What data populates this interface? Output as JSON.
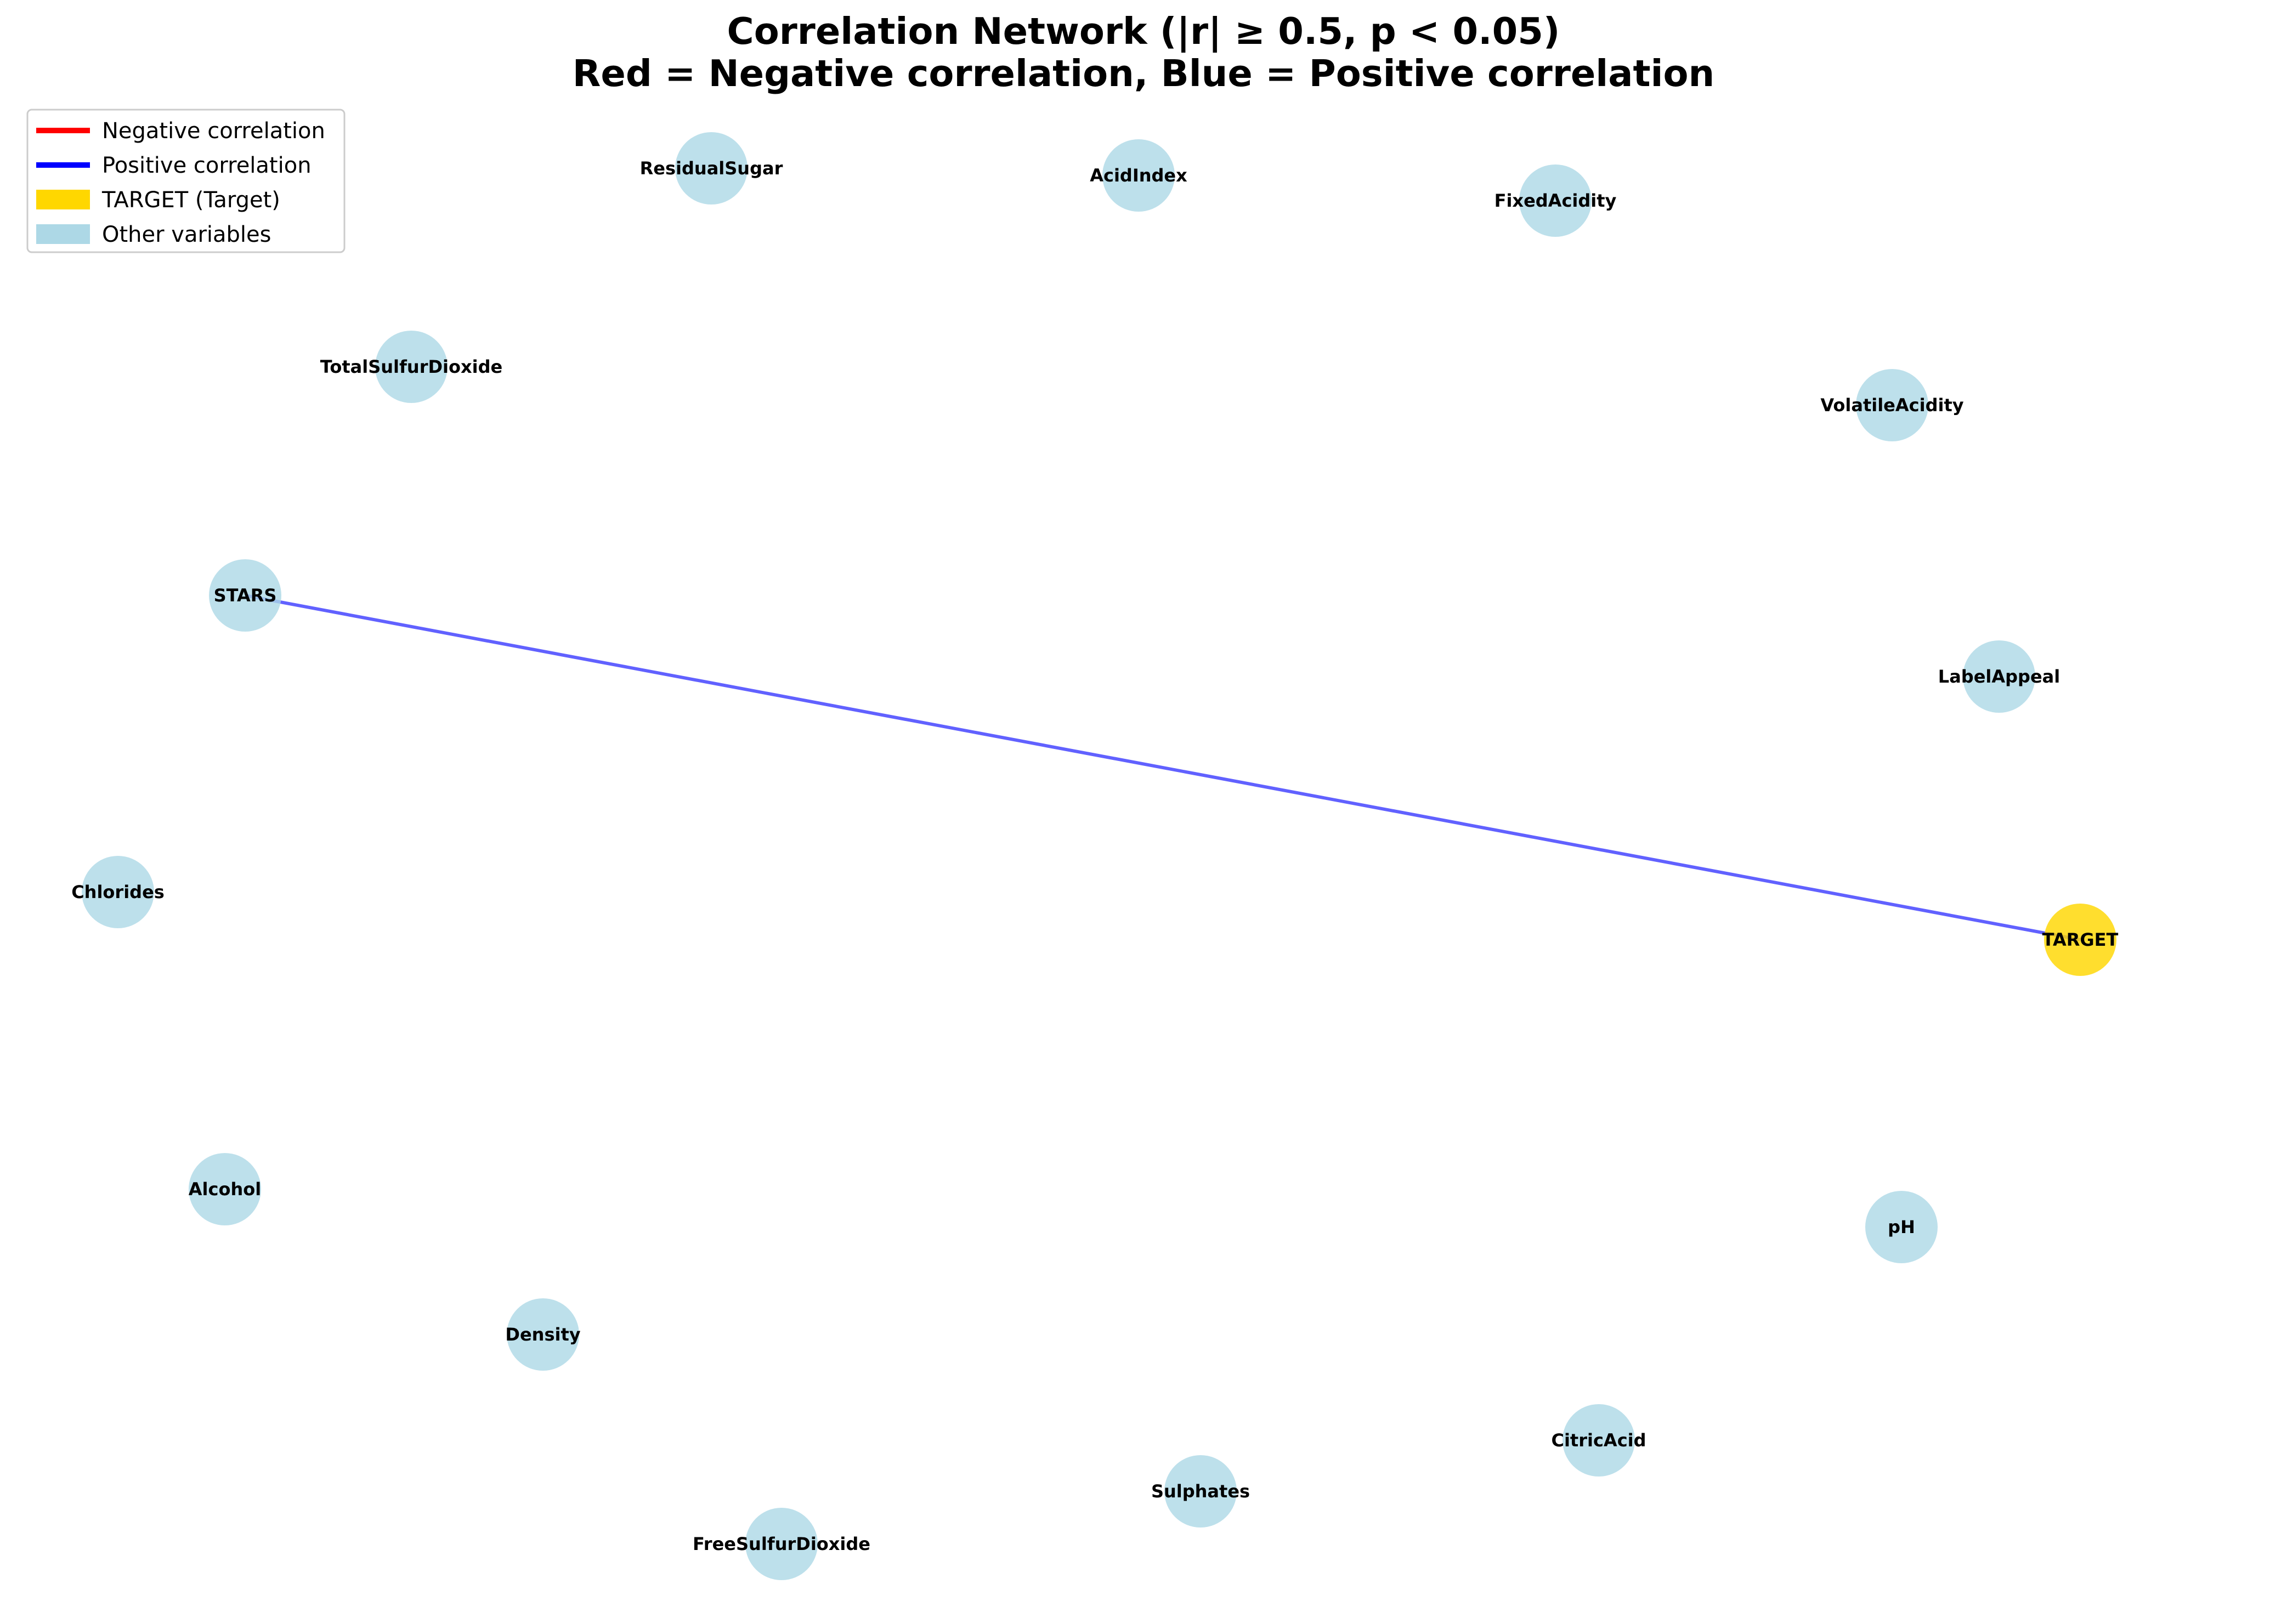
{
  "title": {
    "line1": "Correlation Network (|r| ≥ 0.5, p < 0.05)",
    "line2": "Red = Negative correlation, Blue = Positive correlation"
  },
  "legend": {
    "items": [
      {
        "label": "Negative correlation",
        "kind": "line",
        "color": "#ff0000"
      },
      {
        "label": "Positive correlation",
        "kind": "line",
        "color": "#0000ff"
      },
      {
        "label": "TARGET (Target)",
        "kind": "patch",
        "color": "#ffd700"
      },
      {
        "label": "Other variables",
        "kind": "patch",
        "color": "#add8e6"
      }
    ]
  },
  "colors": {
    "node_default": "#add8e6",
    "node_target": "#ffd700",
    "edge_positive": "#0000ff",
    "edge_negative": "#ff0000"
  },
  "network": {
    "nodes": [
      {
        "id": "ResidualSugar",
        "label": "ResidualSugar",
        "is_target": false
      },
      {
        "id": "AcidIndex",
        "label": "AcidIndex",
        "is_target": false
      },
      {
        "id": "FixedAcidity",
        "label": "FixedAcidity",
        "is_target": false
      },
      {
        "id": "TotalSulfurDioxide",
        "label": "TotalSulfurDioxide",
        "is_target": false
      },
      {
        "id": "VolatileAcidity",
        "label": "VolatileAcidity",
        "is_target": false
      },
      {
        "id": "STARS",
        "label": "STARS",
        "is_target": false
      },
      {
        "id": "LabelAppeal",
        "label": "LabelAppeal",
        "is_target": false
      },
      {
        "id": "Chlorides",
        "label": "Chlorides",
        "is_target": false
      },
      {
        "id": "TARGET",
        "label": "TARGET",
        "is_target": true
      },
      {
        "id": "Alcohol",
        "label": "Alcohol",
        "is_target": false
      },
      {
        "id": "pH",
        "label": "pH",
        "is_target": false
      },
      {
        "id": "Density",
        "label": "Density",
        "is_target": false
      },
      {
        "id": "CitricAcid",
        "label": "CitricAcid",
        "is_target": false
      },
      {
        "id": "Sulphates",
        "label": "Sulphates",
        "is_target": false
      },
      {
        "id": "FreeSulfurDioxide",
        "label": "FreeSulfurDioxide",
        "is_target": false
      }
    ],
    "edges": [
      {
        "source": "STARS",
        "target": "TARGET",
        "sign": "positive"
      }
    ]
  }
}
